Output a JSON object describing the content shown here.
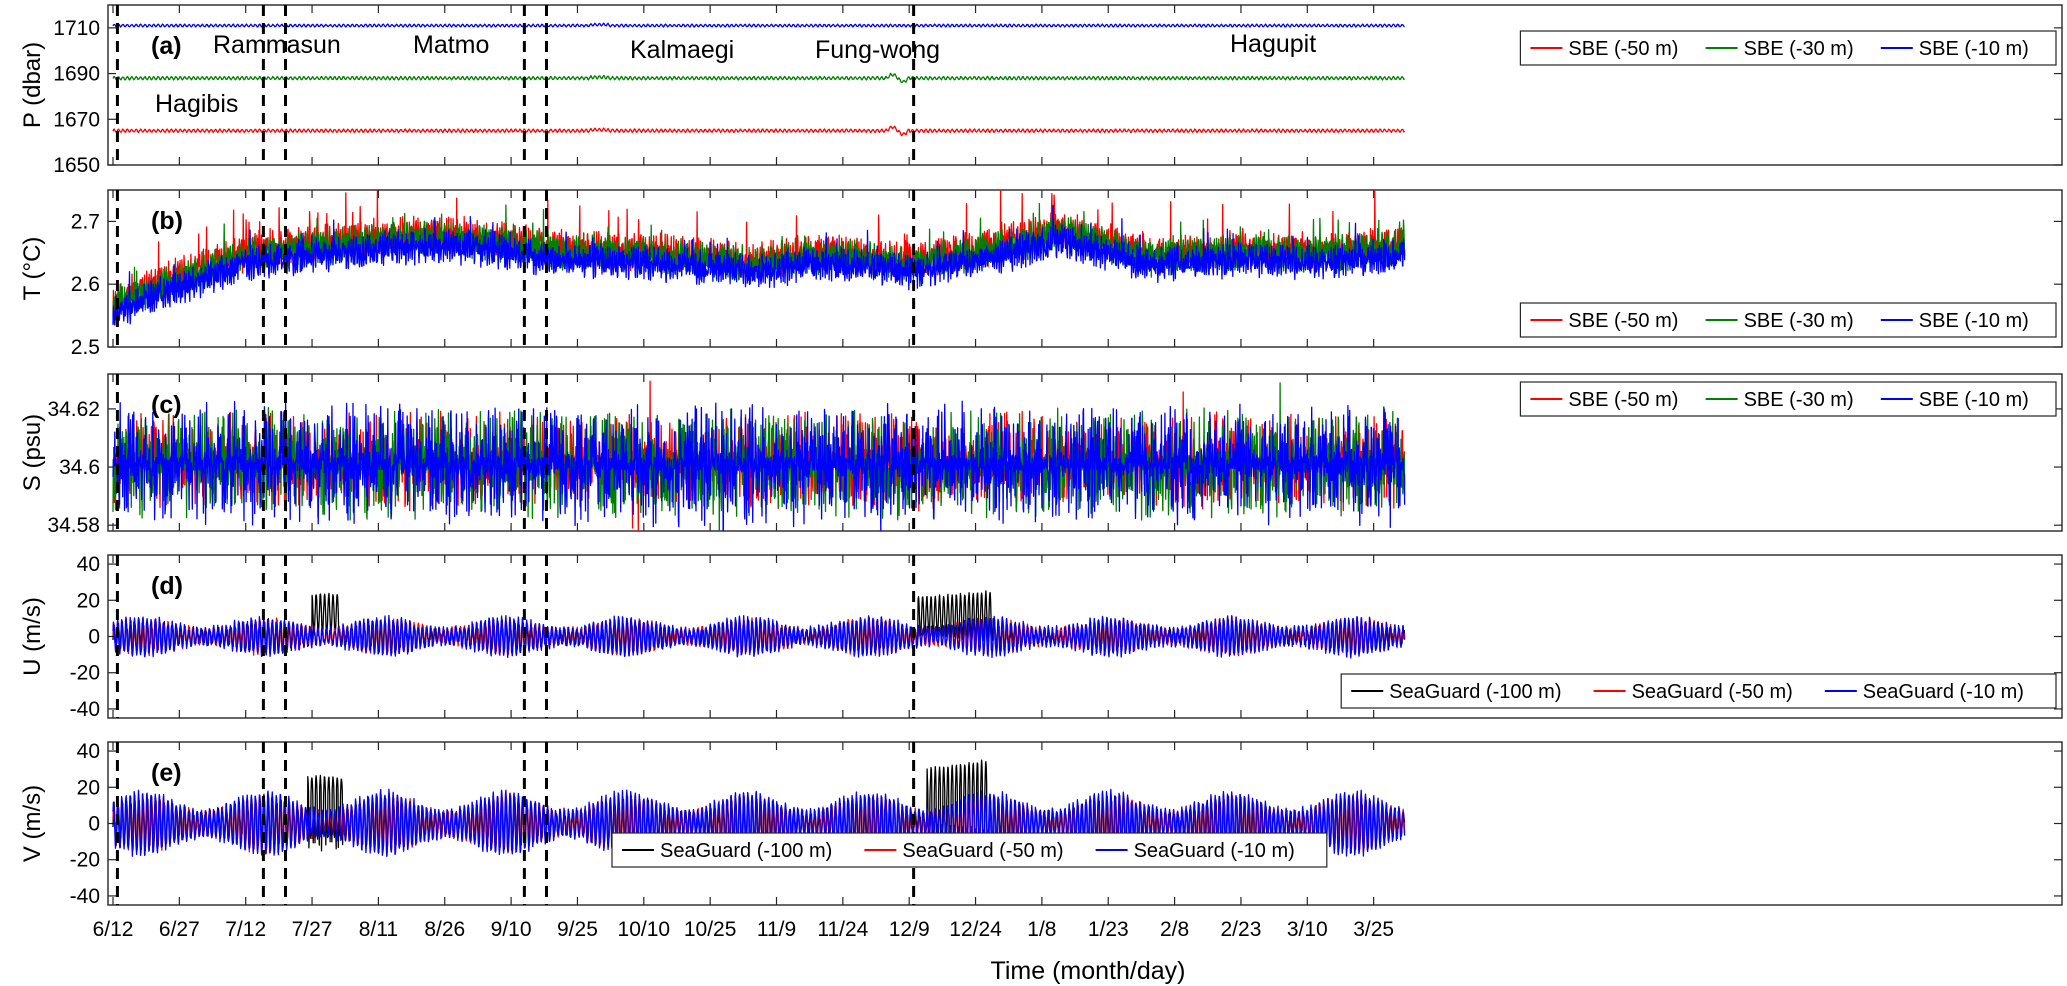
{
  "figure": {
    "xlabel": "Time (month/day)",
    "x_ticks": [
      "6/12",
      "6/27",
      "7/12",
      "7/27",
      "8/11",
      "8/26",
      "9/10",
      "9/25",
      "10/10",
      "10/25",
      "11/9",
      "11/24",
      "12/9",
      "12/24",
      "1/8",
      "1/23",
      "2/8",
      "2/23",
      "3/10",
      "3/25"
    ],
    "typhoons": [
      {
        "name": "Hagibis",
        "day_offset": 1
      },
      {
        "name": "Rammasun",
        "day_offset": 34
      },
      {
        "name": "Matmo",
        "day_offset": 39
      },
      {
        "name": "Kalmaegi",
        "day_offset": 93
      },
      {
        "name": "Fung-wong",
        "day_offset": 98
      },
      {
        "name": "Hagupit",
        "day_offset": 181
      }
    ]
  },
  "chart_data": [
    {
      "panel": "(a)",
      "type": "line",
      "ylabel": "P (dbar)",
      "ylim": [
        1650,
        1720
      ],
      "yticks": [
        1650,
        1670,
        1690,
        1710
      ],
      "legend_position": "top-right",
      "series": [
        {
          "name": "SBE (-50 m)",
          "color": "#ff0000",
          "mean": 1665,
          "noise": 0.6
        },
        {
          "name": "SBE (-30 m)",
          "color": "#008000",
          "mean": 1688,
          "noise": 0.6
        },
        {
          "name": "SBE (-10 m)",
          "color": "#0000ff",
          "mean": 1711,
          "noise": 0.5
        }
      ]
    },
    {
      "panel": "(b)",
      "type": "line",
      "ylabel": "T (°C)",
      "ylim": [
        2.5,
        2.75
      ],
      "yticks": [
        2.5,
        2.6,
        2.7
      ],
      "legend_position": "bottom-right",
      "trend_days": [
        0,
        15,
        30,
        50,
        65,
        80,
        100,
        120,
        145,
        160,
        181,
        200,
        215,
        235,
        255,
        275,
        292
      ],
      "trend_values": [
        2.56,
        2.6,
        2.64,
        2.655,
        2.665,
        2.665,
        2.645,
        2.64,
        2.625,
        2.64,
        2.625,
        2.65,
        2.675,
        2.635,
        2.645,
        2.64,
        2.655
      ],
      "series": [
        {
          "name": "SBE (-50 m)",
          "color": "#ff0000",
          "offset": 0.012,
          "noise": 0.028
        },
        {
          "name": "SBE (-30 m)",
          "color": "#008000",
          "offset": 0.006,
          "noise": 0.026
        },
        {
          "name": "SBE (-10 m)",
          "color": "#0000ff",
          "offset": -0.006,
          "noise": 0.024
        }
      ]
    },
    {
      "panel": "(c)",
      "type": "line",
      "ylabel": "S (psu)",
      "ylim": [
        34.578,
        34.632
      ],
      "yticks": [
        34.58,
        34.6,
        34.62
      ],
      "legend_position": "top-right",
      "series": [
        {
          "name": "SBE (-50 m)",
          "color": "#ff0000",
          "mean": 34.602,
          "noise": 0.007
        },
        {
          "name": "SBE (-30 m)",
          "color": "#008000",
          "mean": 34.601,
          "noise": 0.008
        },
        {
          "name": "SBE (-10 m)",
          "color": "#0000ff",
          "mean": 34.601,
          "noise": 0.009
        }
      ]
    },
    {
      "panel": "(d)",
      "type": "line",
      "ylabel": "U (m/s)",
      "ylim": [
        -45,
        45
      ],
      "yticks": [
        -40,
        -20,
        0,
        20,
        40
      ],
      "legend_position": "bottom-right",
      "series": [
        {
          "name": "SeaGuard (-100 m)",
          "color": "#000000",
          "amp": 8,
          "bursts": [
            [
              45,
              51,
              25
            ],
            [
              182,
              199,
              22
            ]
          ]
        },
        {
          "name": "SeaGuard (-50 m)",
          "color": "#ff0000",
          "amp": 9,
          "bursts": []
        },
        {
          "name": "SeaGuard (-10 m)",
          "color": "#0000ff",
          "amp": 10,
          "bursts": []
        }
      ]
    },
    {
      "panel": "(e)",
      "type": "line",
      "ylabel": "V (m/s)",
      "ylim": [
        -45,
        45
      ],
      "yticks": [
        -40,
        -20,
        0,
        20,
        40
      ],
      "legend_position": "bottom-center",
      "series": [
        {
          "name": "SeaGuard (-100 m)",
          "color": "#000000",
          "amp": 14,
          "bursts": [
            [
              44,
              52,
              28
            ],
            [
              184,
              198,
              30
            ]
          ]
        },
        {
          "name": "SeaGuard (-50 m)",
          "color": "#ff0000",
          "amp": 15,
          "bursts": []
        },
        {
          "name": "SeaGuard (-10 m)",
          "color": "#0000ff",
          "amp": 17,
          "bursts": []
        }
      ]
    }
  ]
}
